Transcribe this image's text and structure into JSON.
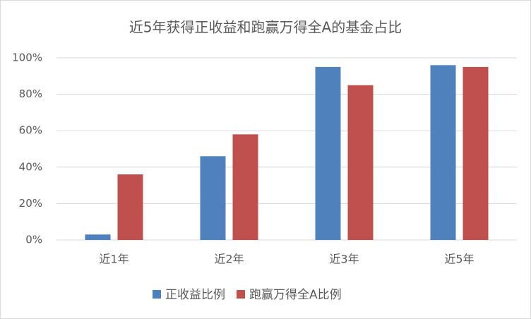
{
  "chart_data": {
    "type": "bar",
    "title": "近5年获得正收益和跑赢万得全A的基金占比",
    "categories": [
      "近1年",
      "近2年",
      "近3年",
      "近5年"
    ],
    "series": [
      {
        "name": "正收益比例",
        "color": "#4f81bd",
        "values": [
          3,
          46,
          95,
          96
        ]
      },
      {
        "name": "跑赢万得全A比例",
        "color": "#c0504d",
        "values": [
          36,
          58,
          85,
          95
        ]
      }
    ],
    "ylim": [
      0,
      100
    ],
    "yticks": [
      {
        "value": 0,
        "label": "0%"
      },
      {
        "value": 20,
        "label": "20%"
      },
      {
        "value": 40,
        "label": "40%"
      },
      {
        "value": 60,
        "label": "60%"
      },
      {
        "value": 80,
        "label": "80%"
      },
      {
        "value": 100,
        "label": "100%"
      }
    ],
    "grid": true,
    "legend": "bottom"
  }
}
